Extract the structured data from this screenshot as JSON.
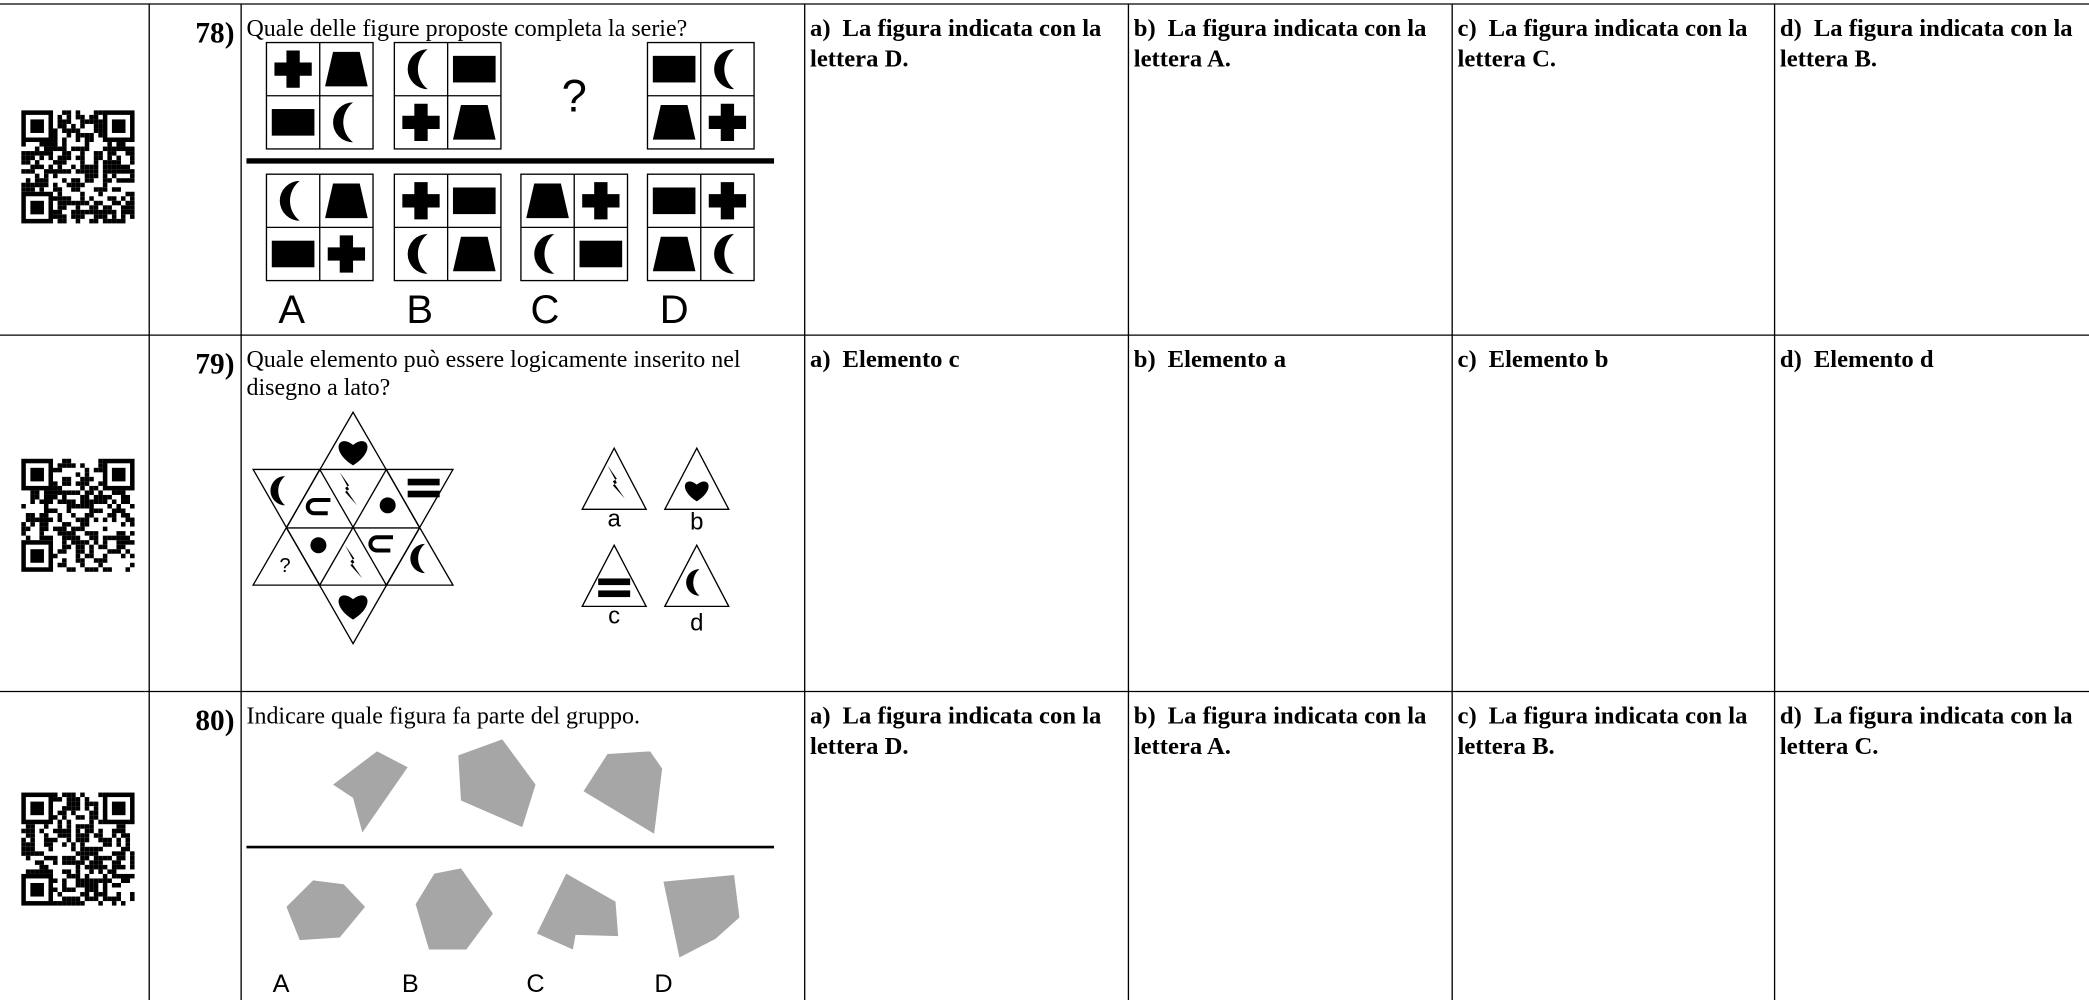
{
  "rows": [
    {
      "number": "78)",
      "question": "Quale delle figure proposte completa la serie?",
      "figure_labels": [
        "?",
        "A",
        "B",
        "C",
        "D"
      ],
      "options": [
        {
          "letter": "a)",
          "text": "La figura indicata con la lettera D."
        },
        {
          "letter": "b)",
          "text": "La figura indicata con la lettera A."
        },
        {
          "letter": "c)",
          "text": "La figura indicata con la lettera C."
        },
        {
          "letter": "d)",
          "text": "La figura indicata con la lettera B."
        }
      ]
    },
    {
      "number": "79)",
      "question": "Quale elemento può essere logicamente inserito nel disegno a lato?",
      "figure_labels": [
        "?",
        "a",
        "b",
        "c",
        "d"
      ],
      "options": [
        {
          "letter": "a)",
          "text": "Elemento c"
        },
        {
          "letter": "b)",
          "text": "Elemento a"
        },
        {
          "letter": "c)",
          "text": "Elemento b"
        },
        {
          "letter": "d)",
          "text": "Elemento d"
        }
      ]
    },
    {
      "number": "80)",
      "question": "Indicare quale figura fa parte del gruppo.",
      "figure_labels": [
        "A",
        "B",
        "C",
        "D"
      ],
      "options": [
        {
          "letter": "a)",
          "text": "La figura indicata con la lettera D."
        },
        {
          "letter": "b)",
          "text": "La figura indicata con la lettera A."
        },
        {
          "letter": "c)",
          "text": "La figura indicata con la lettera B."
        },
        {
          "letter": "d)",
          "text": "La figura indicata con la lettera C."
        }
      ]
    }
  ]
}
